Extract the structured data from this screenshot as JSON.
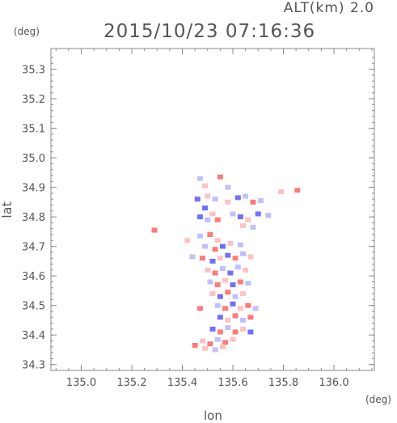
{
  "header": {
    "altitude_label": "ALT(km) 2.0",
    "timestamp": "2015/10/23 07:16:36"
  },
  "colors": {
    "axis": "#8a8a8a",
    "text": "#555555",
    "positive": "#ff7a7a",
    "negative": "#7070ff",
    "pale_positive": "#ffc2c2",
    "pale_negative": "#c0c0ff"
  },
  "chart_data": {
    "type": "heatmap",
    "xlabel": "lon",
    "ylabel": "lat",
    "x_unit": "(deg)",
    "y_unit": "(deg)",
    "xlim": [
      134.88,
      136.16
    ],
    "ylim": [
      34.28,
      35.37
    ],
    "x_ticks": [
      "135.0",
      "135.2",
      "135.4",
      "135.6",
      "135.8",
      "136.0"
    ],
    "y_ticks": [
      "34.3",
      "34.4",
      "34.5",
      "34.6",
      "34.7",
      "34.8",
      "34.9",
      "35.0",
      "35.1",
      "35.2",
      "35.3"
    ],
    "grid": false,
    "cells": [
      {
        "lon": 135.29,
        "lat": 34.755,
        "v": 2
      },
      {
        "lon": 135.42,
        "lat": 34.72,
        "v": 1
      },
      {
        "lon": 135.44,
        "lat": 34.665,
        "v": -1
      },
      {
        "lon": 135.47,
        "lat": 34.93,
        "v": -1
      },
      {
        "lon": 135.49,
        "lat": 34.905,
        "v": 1
      },
      {
        "lon": 135.55,
        "lat": 34.935,
        "v": 2
      },
      {
        "lon": 135.58,
        "lat": 34.9,
        "v": -1
      },
      {
        "lon": 135.46,
        "lat": 34.86,
        "v": -2
      },
      {
        "lon": 135.5,
        "lat": 34.87,
        "v": 1
      },
      {
        "lon": 135.53,
        "lat": 34.86,
        "v": -1
      },
      {
        "lon": 135.58,
        "lat": 34.85,
        "v": 1
      },
      {
        "lon": 135.62,
        "lat": 34.865,
        "v": -2
      },
      {
        "lon": 135.65,
        "lat": 34.87,
        "v": -1
      },
      {
        "lon": 135.68,
        "lat": 34.85,
        "v": 2
      },
      {
        "lon": 135.71,
        "lat": 34.855,
        "v": -1
      },
      {
        "lon": 135.49,
        "lat": 34.83,
        "v": -2
      },
      {
        "lon": 135.52,
        "lat": 34.81,
        "v": 1
      },
      {
        "lon": 135.54,
        "lat": 34.79,
        "v": 2
      },
      {
        "lon": 135.5,
        "lat": 34.79,
        "v": -1
      },
      {
        "lon": 135.47,
        "lat": 34.8,
        "v": -2
      },
      {
        "lon": 135.6,
        "lat": 34.81,
        "v": -1
      },
      {
        "lon": 135.63,
        "lat": 34.8,
        "v": -2
      },
      {
        "lon": 135.66,
        "lat": 34.79,
        "v": 1
      },
      {
        "lon": 135.7,
        "lat": 34.81,
        "v": -2
      },
      {
        "lon": 135.74,
        "lat": 34.805,
        "v": -1
      },
      {
        "lon": 135.64,
        "lat": 34.77,
        "v": 1
      },
      {
        "lon": 135.68,
        "lat": 34.765,
        "v": -1
      },
      {
        "lon": 135.79,
        "lat": 34.885,
        "v": 1
      },
      {
        "lon": 135.855,
        "lat": 34.89,
        "v": 2
      },
      {
        "lon": 135.47,
        "lat": 34.735,
        "v": -1
      },
      {
        "lon": 135.51,
        "lat": 34.74,
        "v": 2
      },
      {
        "lon": 135.54,
        "lat": 34.72,
        "v": 1
      },
      {
        "lon": 135.49,
        "lat": 34.7,
        "v": -1
      },
      {
        "lon": 135.53,
        "lat": 34.69,
        "v": 2
      },
      {
        "lon": 135.56,
        "lat": 34.7,
        "v": -2
      },
      {
        "lon": 135.59,
        "lat": 34.71,
        "v": 1
      },
      {
        "lon": 135.63,
        "lat": 34.705,
        "v": -1
      },
      {
        "lon": 135.48,
        "lat": 34.66,
        "v": 2
      },
      {
        "lon": 135.52,
        "lat": 34.65,
        "v": -2
      },
      {
        "lon": 135.55,
        "lat": 34.66,
        "v": 1
      },
      {
        "lon": 135.58,
        "lat": 34.67,
        "v": -2
      },
      {
        "lon": 135.61,
        "lat": 34.66,
        "v": 2
      },
      {
        "lon": 135.64,
        "lat": 34.675,
        "v": -1
      },
      {
        "lon": 135.67,
        "lat": 34.665,
        "v": 1
      },
      {
        "lon": 135.5,
        "lat": 34.62,
        "v": 1
      },
      {
        "lon": 135.53,
        "lat": 34.61,
        "v": 2
      },
      {
        "lon": 135.56,
        "lat": 34.625,
        "v": -1
      },
      {
        "lon": 135.59,
        "lat": 34.61,
        "v": -2
      },
      {
        "lon": 135.62,
        "lat": 34.63,
        "v": -1
      },
      {
        "lon": 135.65,
        "lat": 34.62,
        "v": 1
      },
      {
        "lon": 135.51,
        "lat": 34.58,
        "v": -1
      },
      {
        "lon": 135.54,
        "lat": 34.57,
        "v": 2
      },
      {
        "lon": 135.57,
        "lat": 34.585,
        "v": 1
      },
      {
        "lon": 135.6,
        "lat": 34.57,
        "v": -2
      },
      {
        "lon": 135.63,
        "lat": 34.58,
        "v": 2
      },
      {
        "lon": 135.66,
        "lat": 34.575,
        "v": -1
      },
      {
        "lon": 135.52,
        "lat": 34.54,
        "v": 1
      },
      {
        "lon": 135.55,
        "lat": 34.53,
        "v": -2
      },
      {
        "lon": 135.58,
        "lat": 34.545,
        "v": 2
      },
      {
        "lon": 135.61,
        "lat": 34.53,
        "v": -1
      },
      {
        "lon": 135.64,
        "lat": 34.54,
        "v": 1
      },
      {
        "lon": 135.47,
        "lat": 34.49,
        "v": 2
      },
      {
        "lon": 135.54,
        "lat": 34.5,
        "v": -1
      },
      {
        "lon": 135.57,
        "lat": 34.49,
        "v": 2
      },
      {
        "lon": 135.6,
        "lat": 34.505,
        "v": -2
      },
      {
        "lon": 135.63,
        "lat": 34.49,
        "v": 1
      },
      {
        "lon": 135.66,
        "lat": 34.5,
        "v": 2
      },
      {
        "lon": 135.69,
        "lat": 34.49,
        "v": -1
      },
      {
        "lon": 135.55,
        "lat": 34.46,
        "v": -2
      },
      {
        "lon": 135.58,
        "lat": 34.45,
        "v": 1
      },
      {
        "lon": 135.61,
        "lat": 34.465,
        "v": 2
      },
      {
        "lon": 135.64,
        "lat": 34.45,
        "v": -1
      },
      {
        "lon": 135.67,
        "lat": 34.46,
        "v": 2
      },
      {
        "lon": 135.52,
        "lat": 34.42,
        "v": -2
      },
      {
        "lon": 135.55,
        "lat": 34.41,
        "v": 2
      },
      {
        "lon": 135.58,
        "lat": 34.425,
        "v": -1
      },
      {
        "lon": 135.61,
        "lat": 34.41,
        "v": 2
      },
      {
        "lon": 135.64,
        "lat": 34.42,
        "v": 1
      },
      {
        "lon": 135.67,
        "lat": 34.41,
        "v": -2
      },
      {
        "lon": 135.48,
        "lat": 34.38,
        "v": 1
      },
      {
        "lon": 135.51,
        "lat": 34.37,
        "v": 2
      },
      {
        "lon": 135.54,
        "lat": 34.385,
        "v": -1
      },
      {
        "lon": 135.57,
        "lat": 34.375,
        "v": 2
      },
      {
        "lon": 135.6,
        "lat": 34.385,
        "v": 1
      },
      {
        "lon": 135.45,
        "lat": 34.365,
        "v": 2
      },
      {
        "lon": 135.49,
        "lat": 34.355,
        "v": 1
      },
      {
        "lon": 135.53,
        "lat": 34.35,
        "v": -1
      },
      {
        "lon": 135.56,
        "lat": 34.36,
        "v": 1
      }
    ]
  }
}
